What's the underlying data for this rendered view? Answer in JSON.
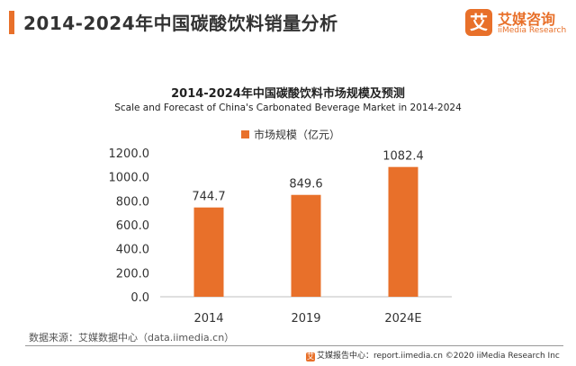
{
  "header": {
    "title": "2014-2024年中国碳酸饮料销量分析"
  },
  "logo": {
    "mark": "艾",
    "name_cn": "艾媒咨询",
    "name_en": "iiMedia Research"
  },
  "colors": {
    "accent": "#e8702a",
    "bar": "#e8702a",
    "axis": "#bfbfbf"
  },
  "chart_data": {
    "type": "bar",
    "title": "2014-2024年中国碳酸饮料市场规模及预测",
    "subtitle": "Scale and Forecast of China's Carbonated Beverage Market in 2014-2024",
    "categories": [
      "2014",
      "2019",
      "2024E"
    ],
    "series": [
      {
        "name": "市场规模（亿元）",
        "values": [
          744.7,
          849.6,
          1082.4
        ]
      }
    ],
    "data_labels": [
      "744.7",
      "849.6",
      "1082.4"
    ],
    "yticks": [
      "0.0",
      "200.0",
      "400.0",
      "600.0",
      "800.0",
      "1000.0",
      "1200.0"
    ],
    "ylim": [
      0,
      1200
    ],
    "grid": false,
    "legend_position": "top-center",
    "xlabel": "",
    "ylabel": ""
  },
  "source": {
    "text": "数据来源：艾媒数据中心（data.iimedia.cn）"
  },
  "footer": {
    "icon": "艾",
    "text": "艾媒报告中心：report.iimedia.cn  ©2020  iiMedia Research  Inc"
  }
}
